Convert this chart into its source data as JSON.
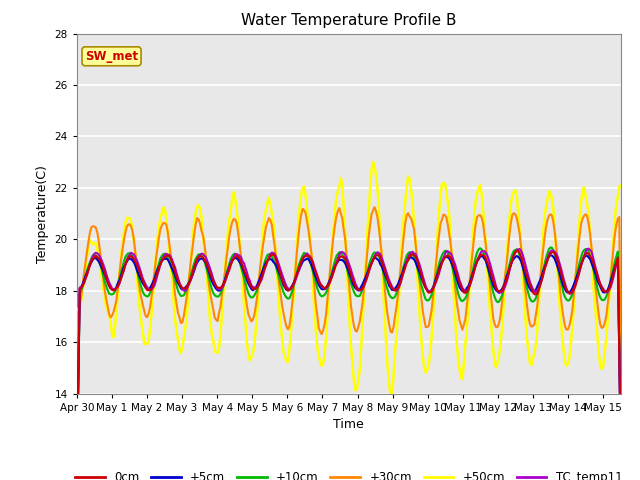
{
  "title": "Water Temperature Profile B",
  "xlabel": "Time",
  "ylabel": "Temperature(C)",
  "ylim": [
    14,
    28
  ],
  "yticks": [
    14,
    16,
    18,
    20,
    22,
    24,
    26,
    28
  ],
  "annotation_text": "SW_met",
  "annotation_color": "#cc0000",
  "annotation_bg": "#ffff99",
  "annotation_border": "#aa8800",
  "bg_color": "#e8e8e8",
  "grid_color": "white",
  "series_colors": {
    "0cm": "#cc0000",
    "+5cm": "#0000cc",
    "+10cm": "#00bb00",
    "+30cm": "#ff8800",
    "+50cm": "#ffff00",
    "TC_temp11": "#aa00cc"
  },
  "x_tick_labels": [
    "Apr 30",
    "May 1",
    "May 2",
    "May 3",
    "May 4",
    "May 5",
    "May 6",
    "May 7",
    "May 8",
    "May 9",
    "May 10",
    "May 11",
    "May 12",
    "May 13",
    "May 14",
    "May 15"
  ],
  "figsize": [
    6.4,
    4.8
  ],
  "dpi": 100
}
